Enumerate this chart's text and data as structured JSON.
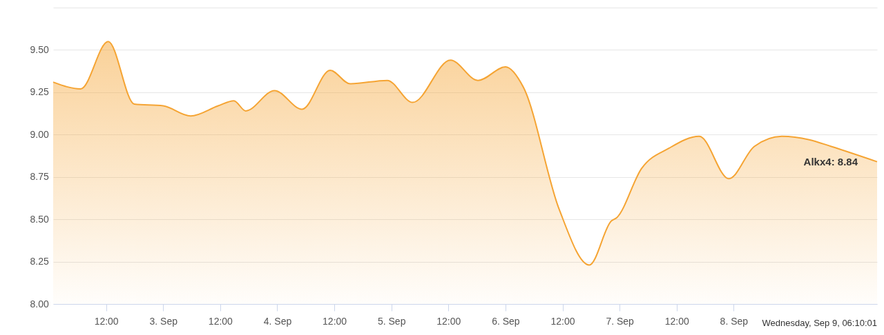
{
  "chart_data": {
    "type": "area",
    "x": [
      "--09-02T00:52",
      "--09-02T06:39",
      "--09-02T12:26",
      "--09-02T17:56",
      "--09-03T00:00",
      "--09-03T05:47",
      "--09-03T11:34",
      "--09-03T14:53",
      "--09-03T17:21",
      "--09-03T23:25",
      "--09-04T05:13",
      "--09-04T11:08",
      "--09-04T15:20",
      "--09-04T23:08",
      "--09-05T04:29",
      "--09-05T12:26",
      "--09-05T18:13",
      "--09-06T00:00",
      "--09-06T03:46",
      "--09-06T11:17",
      "--09-06T17:38",
      "--09-06T22:16",
      "--09-06T23:25",
      "--09-07T04:38",
      "--09-07T10:25",
      "--09-07T16:46",
      "--09-07T22:59",
      "--09-08T04:20",
      "--09-08T10:07",
      "--09-08T15:54",
      "--09-08T20:32",
      "--09-09T06:10"
    ],
    "series": [
      {
        "color": "#f5a433",
        "values": [
          9.31,
          9.27,
          9.55,
          9.18,
          9.17,
          9.11,
          9.17,
          9.2,
          9.14,
          9.26,
          9.15,
          9.38,
          9.3,
          9.32,
          9.19,
          9.44,
          9.32,
          9.4,
          9.28,
          8.56,
          8.23,
          8.49,
          8.51,
          8.8,
          8.92,
          8.99,
          8.74,
          8.93,
          8.99,
          8.97,
          8.93,
          8.84
        ]
      }
    ],
    "xlim": [
      "--09-02T00:52",
      "--09-09T06:10"
    ],
    "xticks": [
      {
        "value": "--09-02T12:00",
        "label": "12:00"
      },
      {
        "value": "--09-03",
        "label": "3. Sep"
      },
      {
        "value": "--09-03T12:00",
        "label": "12:00"
      },
      {
        "value": "--09-04",
        "label": "4. Sep"
      },
      {
        "value": "--09-04T12:00",
        "label": "12:00"
      },
      {
        "value": "--09-05",
        "label": "5. Sep"
      },
      {
        "value": "--09-05T12:00",
        "label": "12:00"
      },
      {
        "value": "--09-06",
        "label": "6. Sep"
      },
      {
        "value": "--09-06T12:00",
        "label": "12:00"
      },
      {
        "value": "--09-07",
        "label": "7. Sep"
      },
      {
        "value": "--09-07T12:00",
        "label": "12:00"
      },
      {
        "value": "--09-08",
        "label": "8. Sep"
      }
    ],
    "ylim": [
      8,
      9.75
    ],
    "yticks": [
      {
        "value": 8,
        "label": "8.00"
      },
      {
        "value": 8.25,
        "label": "8.25"
      },
      {
        "value": 8.5,
        "label": "8.50"
      },
      {
        "value": 8.75,
        "label": "8.75"
      },
      {
        "value": 9,
        "label": "9.00"
      },
      {
        "value": 9.25,
        "label": "9.25"
      },
      {
        "value": 9.5,
        "label": "9.50"
      },
      {
        "value": 9.75,
        "label": null
      }
    ],
    "grid": "y",
    "annotations": [
      {
        "text": "Alkx4: 8.84",
        "x": "--09-09T06:10",
        "y": 8.84
      },
      "Wednesday, Sep 9, 06:10:01"
    ]
  }
}
